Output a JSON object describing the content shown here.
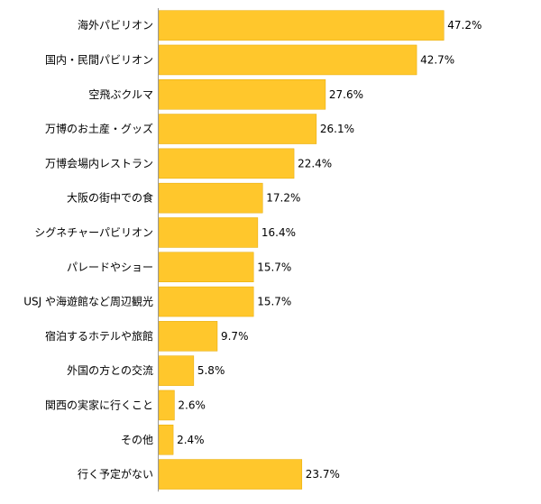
{
  "chart_data": {
    "type": "bar",
    "orientation": "horizontal",
    "categories": [
      "海外パビリオン",
      "国内・民間パビリオン",
      "空飛ぶクルマ",
      "万博のお土産・グッズ",
      "万博会場内レストラン",
      "大阪の街中での食",
      "シグネチャーパビリオン",
      "パレードやショー",
      "USJ や海遊館など周辺観光",
      "宿泊するホテルや旅館",
      "外国の方との交流",
      "関西の実家に行くこと",
      "その他",
      "行く予定がない"
    ],
    "values": [
      47.2,
      42.7,
      27.6,
      26.1,
      22.4,
      17.2,
      16.4,
      15.7,
      15.7,
      9.7,
      5.8,
      2.6,
      2.4,
      23.7
    ],
    "value_labels": [
      "47.2%",
      "42.7%",
      "27.6%",
      "26.1%",
      "22.4%",
      "17.2%",
      "16.4%",
      "15.7%",
      "15.7%",
      "9.7%",
      "5.8%",
      "2.6%",
      "2.4%",
      "23.7%"
    ],
    "title": "",
    "xlabel": "",
    "ylabel": "",
    "xlim": [
      0,
      100
    ],
    "grid": false,
    "legend": "none",
    "bar_color": "#FFC72C",
    "bar_edge_color": "#E6A800"
  }
}
